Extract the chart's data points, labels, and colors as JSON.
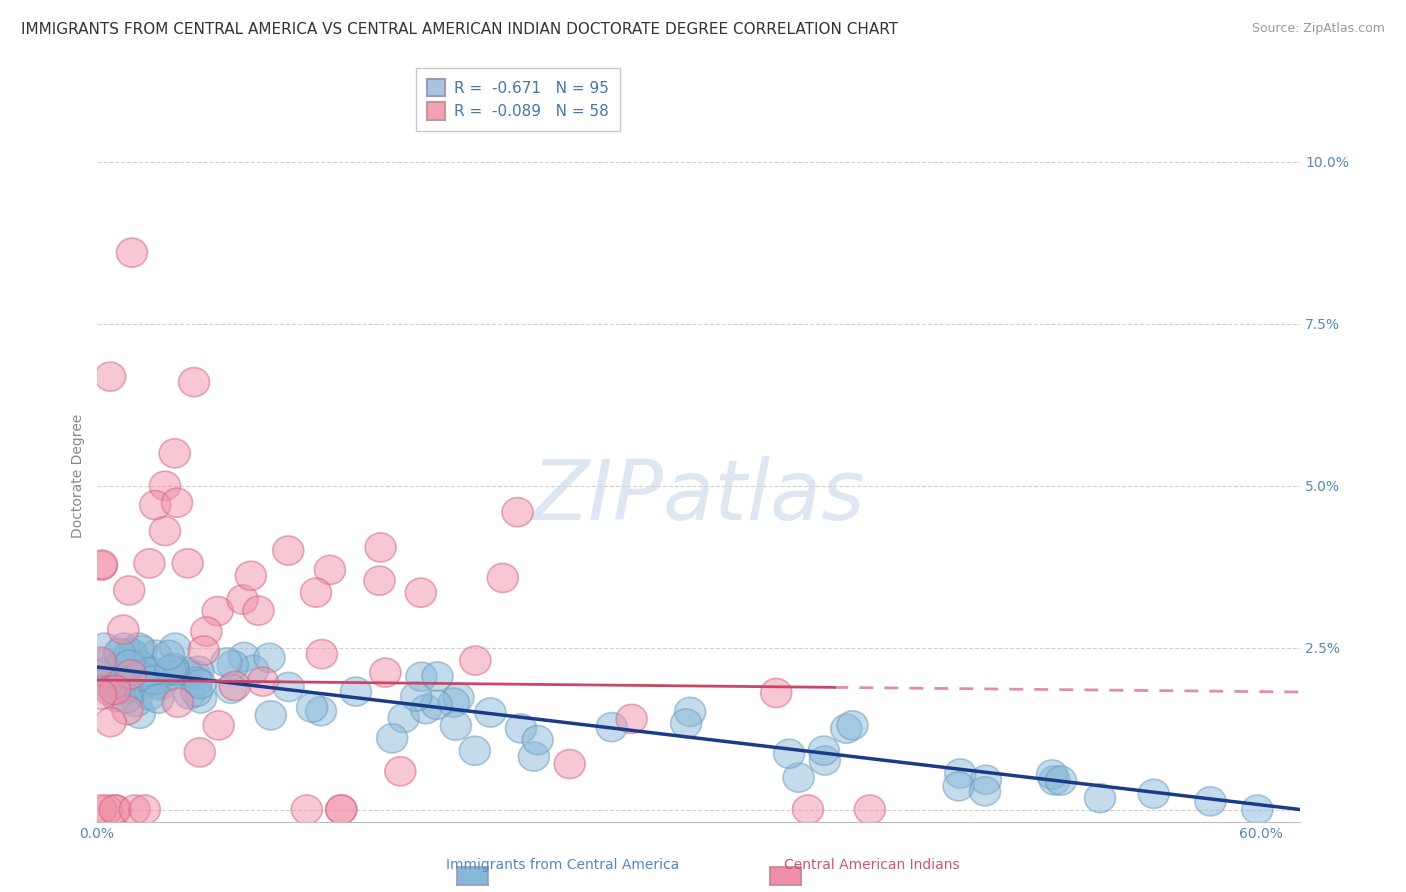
{
  "title": "IMMIGRANTS FROM CENTRAL AMERICA VS CENTRAL AMERICAN INDIAN DOCTORATE DEGREE CORRELATION CHART",
  "source": "Source: ZipAtlas.com",
  "ylabel": "Doctorate Degree",
  "xlim": [
    0.0,
    0.62
  ],
  "ylim": [
    -0.002,
    0.105
  ],
  "ytick_right_labels": [
    "",
    "2.5%",
    "5.0%",
    "7.5%",
    "10.0%"
  ],
  "ytick_right_values": [
    0.0,
    0.025,
    0.05,
    0.075,
    0.1
  ],
  "xtick_positions": [
    0.0,
    0.1,
    0.2,
    0.3,
    0.4,
    0.5,
    0.6
  ],
  "legend_entries": [
    {
      "label": "R =  -0.671   N = 95",
      "color": "#a8c4e0"
    },
    {
      "label": "R =  -0.089   N = 58",
      "color": "#f4a0b4"
    }
  ],
  "series1_label": "Immigrants from Central America",
  "series2_label": "Central American Indians",
  "series1_color": "#88b8d8",
  "series2_color": "#f090a8",
  "series1_edge_color": "#6699bb",
  "series2_edge_color": "#d06080",
  "series1_line_color": "#1a3a8a",
  "series2_line_color": "#cc4466",
  "background_color": "#ffffff",
  "grid_color": "#cccccc",
  "watermark_color": "#c8d8e8",
  "title_fontsize": 11,
  "axis_label_fontsize": 10,
  "tick_fontsize": 10,
  "legend_fontsize": 11,
  "series1_line_start": 0.0,
  "series1_line_end": 0.62,
  "series1_line_intercept": 0.022,
  "series1_line_slope": -0.036,
  "series2_line_start": 0.0,
  "series2_line_end_solid": 0.38,
  "series2_line_end_dash": 0.62,
  "series2_line_intercept": 0.02,
  "series2_line_slope": -0.003
}
